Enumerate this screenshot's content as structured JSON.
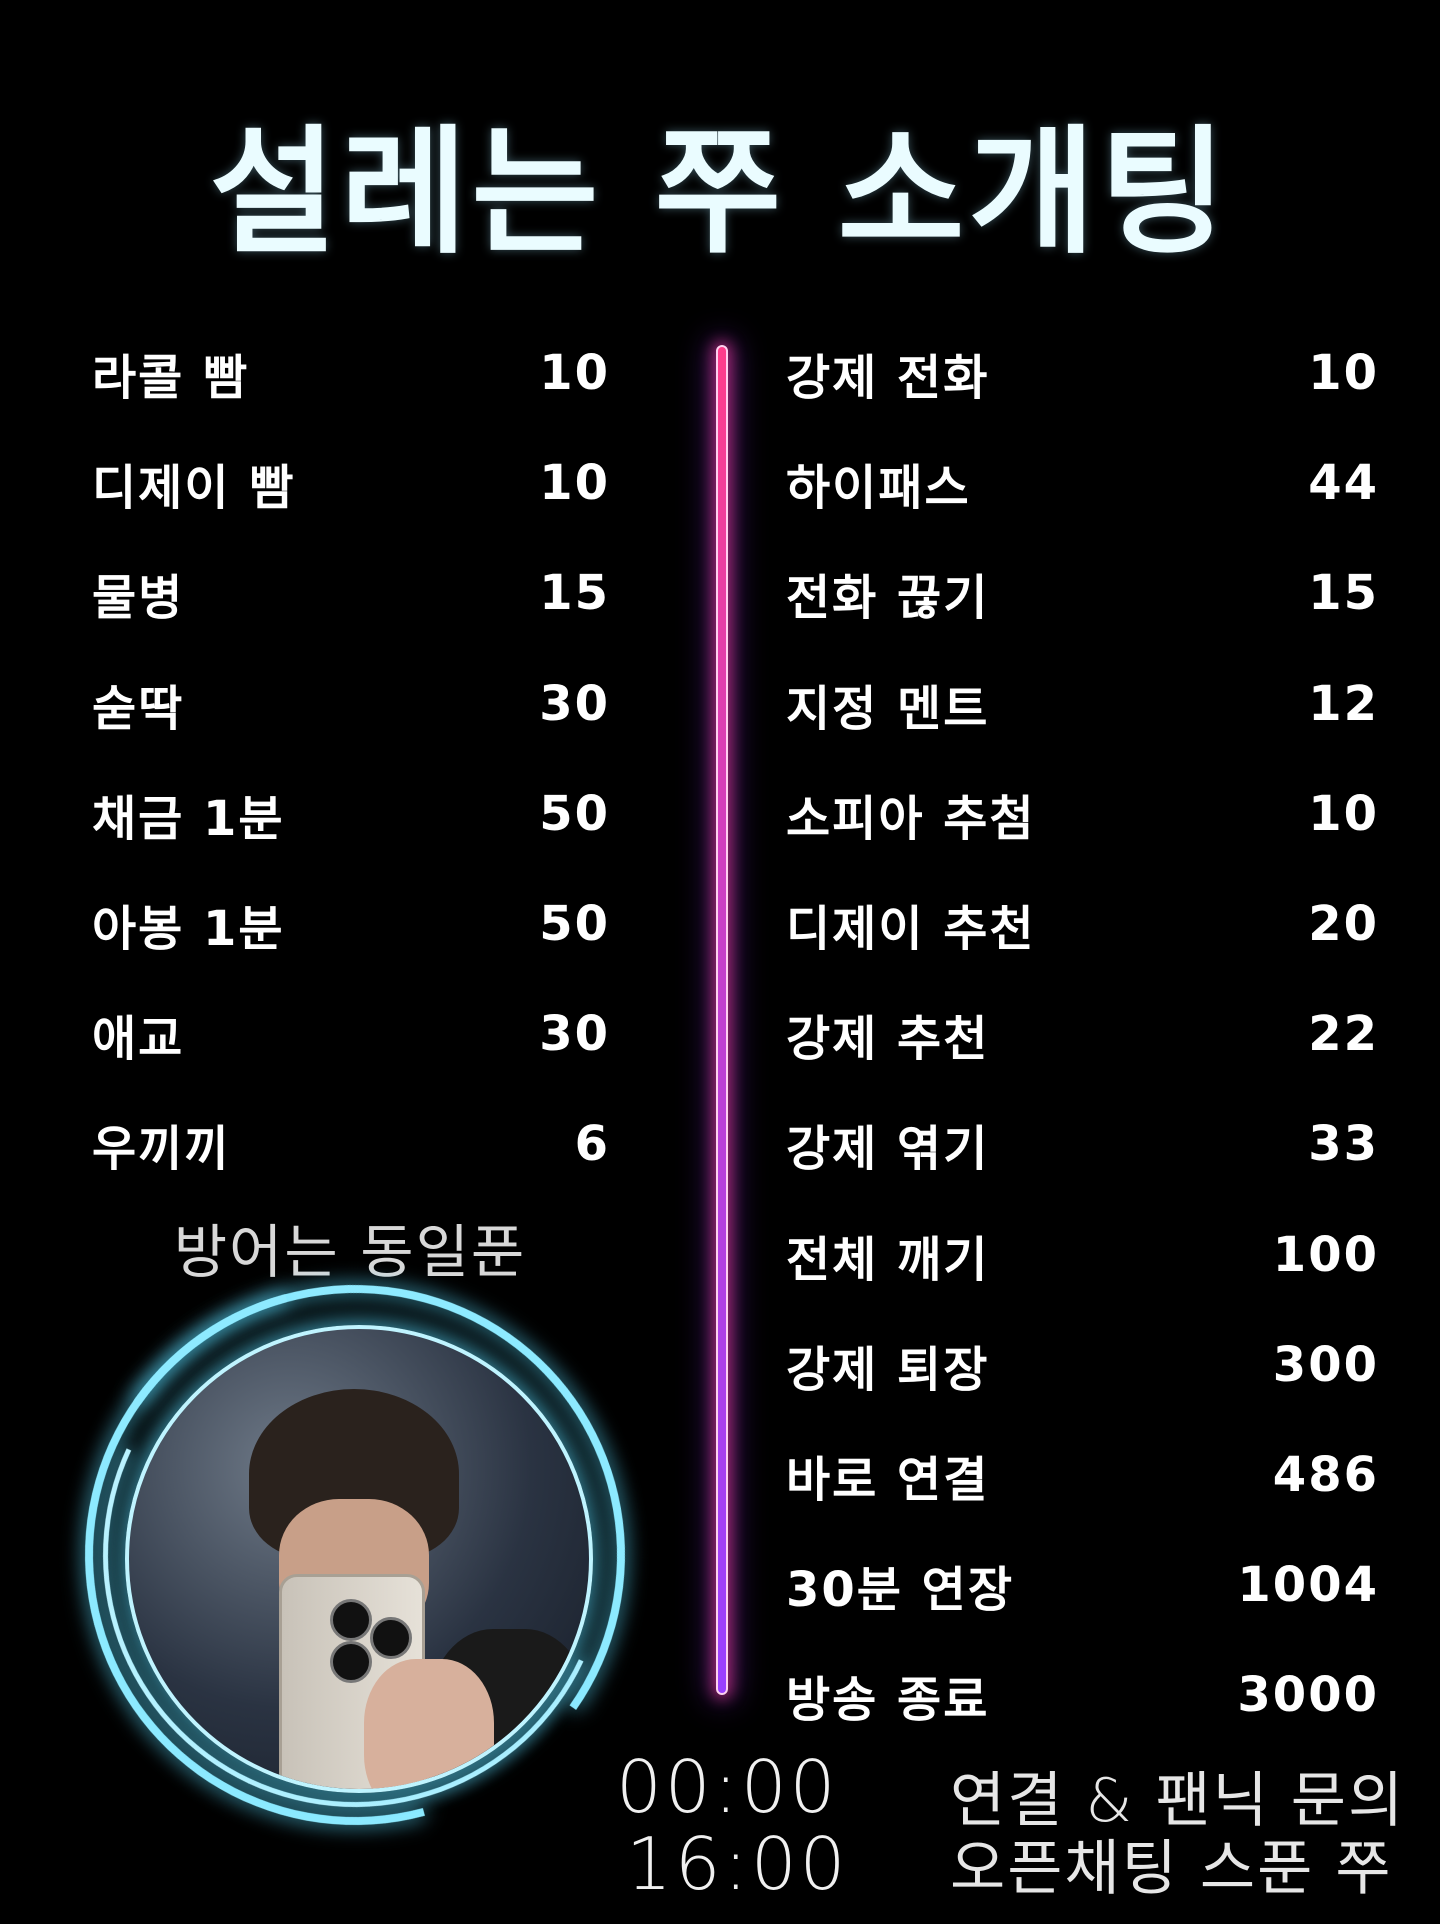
{
  "title": "설레는 쭈 소개팅",
  "left_menu": [
    {
      "label": "라콜 빰",
      "value": "10"
    },
    {
      "label": "디제이 빰",
      "value": "10"
    },
    {
      "label": "물병",
      "value": "15"
    },
    {
      "label": "숟딱",
      "value": "30"
    },
    {
      "label": "채금 1분",
      "value": "50"
    },
    {
      "label": "아봉 1분",
      "value": "50"
    },
    {
      "label": "애교",
      "value": "30"
    },
    {
      "label": "우끼끼",
      "value": "6"
    }
  ],
  "right_menu": [
    {
      "label": "강제 전화",
      "value": "10"
    },
    {
      "label": "하이패스",
      "value": "44"
    },
    {
      "label": "전화 끊기",
      "value": "15"
    },
    {
      "label": "지정 멘트",
      "value": "12"
    },
    {
      "label": "소피아 추첨",
      "value": "10"
    },
    {
      "label": "디제이 추천",
      "value": "20"
    },
    {
      "label": "강제 추천",
      "value": "22"
    },
    {
      "label": "강제 엮기",
      "value": "33"
    },
    {
      "label": "전체 깨기",
      "value": "100"
    },
    {
      "label": "강제 퇴장",
      "value": "300"
    },
    {
      "label": "바로 연결",
      "value": "486"
    },
    {
      "label": "30분 연장",
      "value": "1004"
    },
    {
      "label": "방송 종료",
      "value": "3000"
    }
  ],
  "defense_note": "방어는 동일푼",
  "schedule": {
    "start": "00:00",
    "end": "16:00"
  },
  "contact": {
    "line1": "연결 & 팬닉 문의",
    "line2": "오픈채팅 스푼 쭈"
  },
  "colors": {
    "neon_top": "#ff3d8b",
    "neon_bottom": "#9a40ff",
    "ring": "#5adcff",
    "title": "#eafcff"
  }
}
